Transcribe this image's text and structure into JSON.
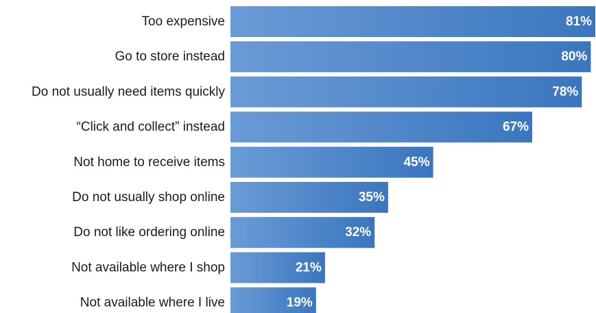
{
  "chart_data": {
    "type": "bar",
    "orientation": "horizontal",
    "categories": [
      "Too expensive",
      "Go to store instead",
      "Do not usually need items quickly",
      "“Click and collect” instead",
      "Not home to receive items",
      "Do not usually shop online",
      "Do not like ordering online",
      "Not available where I shop",
      "Not available where I live"
    ],
    "values": [
      81,
      80,
      78,
      67,
      45,
      35,
      32,
      21,
      19
    ],
    "value_labels": [
      "81%",
      "80%",
      "78%",
      "67%",
      "45%",
      "35%",
      "32%",
      "21%",
      "19%"
    ],
    "title": "",
    "xlabel": "",
    "ylabel": "",
    "xlim": [
      0,
      81
    ],
    "grid": false,
    "legend": "none",
    "colors": {
      "bar_start": "#6b9bd6",
      "bar_end": "#3a76bf",
      "label_text": "#1a1a1a",
      "value_text": "#ffffff"
    }
  }
}
